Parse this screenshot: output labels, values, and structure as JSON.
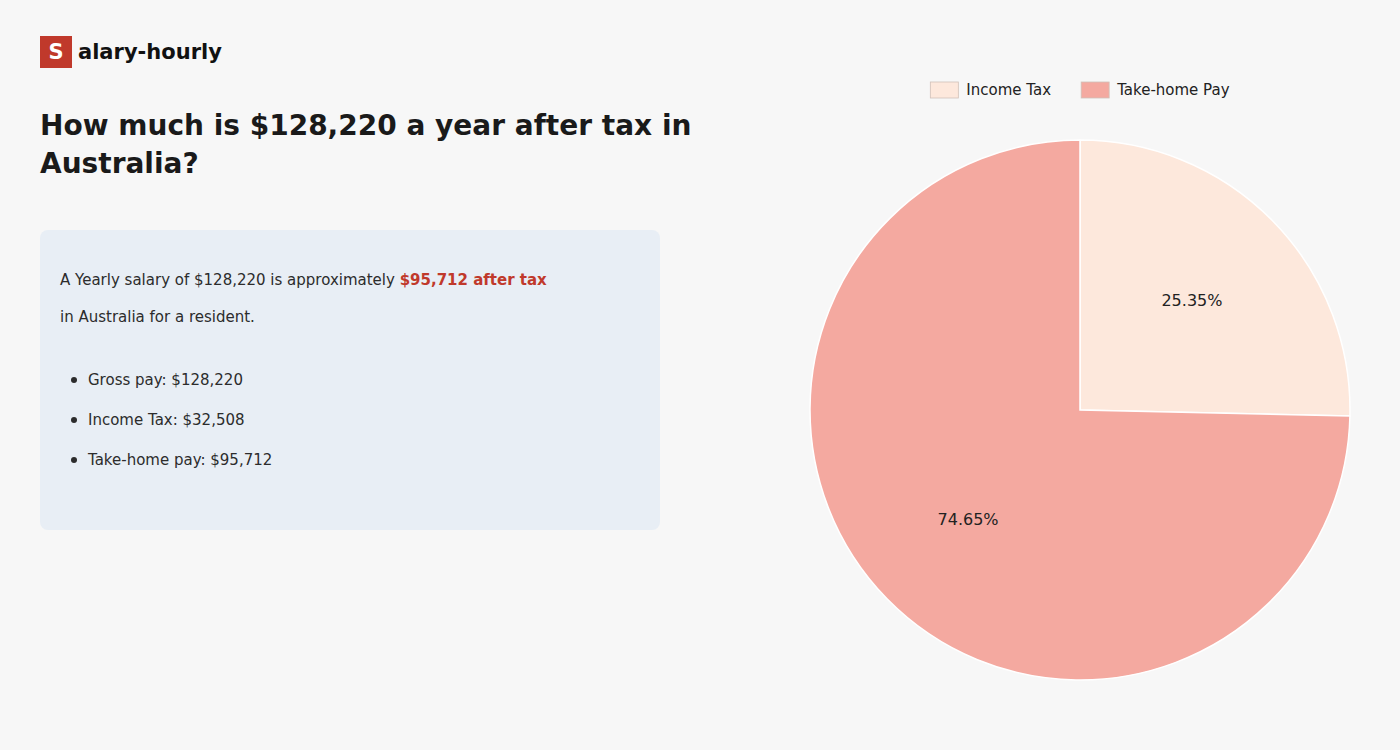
{
  "chart_data": {
    "type": "pie",
    "title": "How much is $128,220 a year after tax in\nAustralia?",
    "categories": [
      "Income Tax",
      "Take-home Pay"
    ],
    "values": [
      25.35,
      74.65
    ],
    "value_labels": [
      "25.35%",
      "74.65%"
    ],
    "colors": [
      "#fde8dc",
      "#f4a9a0"
    ],
    "data_labels": true,
    "legend": "top",
    "annotations": [
      "S",
      "alary-hourly",
      "A Yearly salary of $128,220 is approximately ",
      "$95,712 after tax",
      "in Australia for a resident.",
      "Gross pay: $128,220",
      "Income Tax: $32,508",
      "Take-home pay: $95,712"
    ]
  }
}
